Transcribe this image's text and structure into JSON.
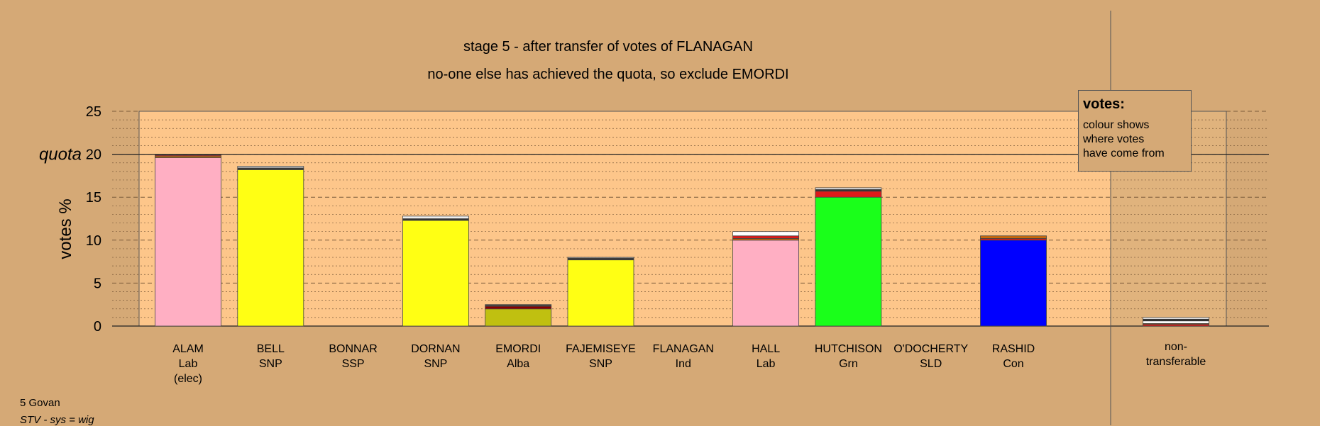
{
  "title": "stage 5 - after transfer of votes of FLANAGAN",
  "subtitle": "no-one else has achieved the quota, so exclude EMORDI",
  "legend": {
    "title": "votes:",
    "lines": [
      "colour shows",
      "where votes",
      "have come from"
    ]
  },
  "footer": {
    "area": "5 Govan",
    "system": "STV - sys = wig"
  },
  "chart_data": {
    "type": "bar",
    "ylabel": "votes %",
    "quota_label": "quota",
    "quota": 20,
    "ylim": [
      0,
      25
    ],
    "yticks": [
      0,
      5,
      10,
      15,
      20,
      25
    ],
    "grid": "dotted-every-1-dashed-every-5",
    "categories": [
      {
        "name": "ALAM",
        "party": "Lab",
        "note": "(elec)",
        "segments": [
          {
            "value": 19.6,
            "color": "#ffafc3"
          },
          {
            "value": 0.2,
            "color": "#c8690a"
          },
          {
            "value": 0.1,
            "color": "#dd1a1a"
          }
        ]
      },
      {
        "name": "BELL",
        "party": "SNP",
        "note": "",
        "segments": [
          {
            "value": 18.2,
            "color": "#ffff14"
          },
          {
            "value": 0.2,
            "color": "#333333"
          },
          {
            "value": 0.2,
            "color": "#cccccc"
          }
        ]
      },
      {
        "name": "BONNAR",
        "party": "SSP",
        "note": "",
        "segments": []
      },
      {
        "name": "DORNAN",
        "party": "SNP",
        "note": "",
        "segments": [
          {
            "value": 12.3,
            "color": "#ffff14"
          },
          {
            "value": 0.2,
            "color": "#333333"
          },
          {
            "value": 0.3,
            "color": "#eeeeee"
          }
        ]
      },
      {
        "name": "EMORDI",
        "party": "Alba",
        "note": "",
        "segments": [
          {
            "value": 2.0,
            "color": "#c0c010"
          },
          {
            "value": 0.3,
            "color": "#8b0000"
          },
          {
            "value": 0.2,
            "color": "#444444"
          }
        ]
      },
      {
        "name": "FAJEMISEYE",
        "party": "SNP",
        "note": "",
        "segments": [
          {
            "value": 7.7,
            "color": "#ffff14"
          },
          {
            "value": 0.2,
            "color": "#333333"
          },
          {
            "value": 0.1,
            "color": "#cccccc"
          }
        ]
      },
      {
        "name": "FLANAGAN",
        "party": "Ind",
        "note": "",
        "segments": []
      },
      {
        "name": "HALL",
        "party": "Lab",
        "note": "",
        "segments": [
          {
            "value": 10.0,
            "color": "#ffafc3"
          },
          {
            "value": 0.2,
            "color": "#c8690a"
          },
          {
            "value": 0.3,
            "color": "#dd1a1a"
          },
          {
            "value": 0.5,
            "color": "#ffffff"
          }
        ]
      },
      {
        "name": "HUTCHISON",
        "party": "Grn",
        "note": "",
        "segments": [
          {
            "value": 15.0,
            "color": "#1aff1a"
          },
          {
            "value": 0.7,
            "color": "#dd1a1a"
          },
          {
            "value": 0.2,
            "color": "#333333"
          },
          {
            "value": 0.2,
            "color": "#eeeeee"
          }
        ]
      },
      {
        "name": "O'DOCHERTY",
        "party": "SLD",
        "note": "",
        "segments": []
      },
      {
        "name": "RASHID",
        "party": "Con",
        "note": "",
        "segments": [
          {
            "value": 10.0,
            "color": "#0000ff"
          },
          {
            "value": 0.2,
            "color": "#dd1a1a"
          },
          {
            "value": 0.3,
            "color": "#c8690a"
          }
        ]
      }
    ],
    "nontransferable": {
      "label_lines": [
        "non-",
        "transferable"
      ],
      "segments": [
        {
          "value": 0.2,
          "color": "#dd1a1a"
        },
        {
          "value": 0.1,
          "color": "#c8690a"
        },
        {
          "value": 0.3,
          "color": "#ffffff"
        },
        {
          "value": 0.2,
          "color": "#222222"
        },
        {
          "value": 0.2,
          "color": "#eeeeee"
        }
      ]
    },
    "colors": {
      "background": "#d5a976",
      "plot_fill": "#fdc68a",
      "nontransferable_fill": "#e0b37d"
    }
  }
}
